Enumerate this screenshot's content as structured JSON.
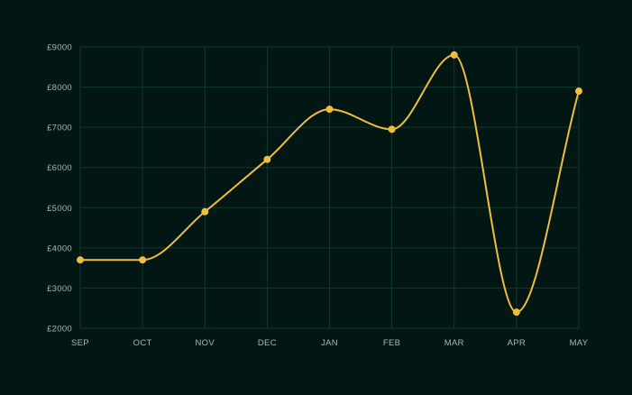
{
  "colors": {
    "background": "#021614",
    "grid": "#0f3a2e",
    "axis_text": "#a9b8b2",
    "line": "#f0be3c",
    "point": "#f0be3c"
  },
  "chart_data": {
    "type": "line",
    "title": "",
    "xlabel": "",
    "ylabel": "",
    "categories": [
      "SEP",
      "OCT",
      "NOV",
      "DEC",
      "JAN",
      "FEB",
      "MAR",
      "APR",
      "MAY"
    ],
    "series": [
      {
        "values": [
          3700,
          3700,
          4900,
          6200,
          7450,
          6950,
          8800,
          2400,
          7900
        ]
      }
    ],
    "ylim": [
      2000,
      9000
    ],
    "yticks": [
      2000,
      3000,
      4000,
      5000,
      6000,
      7000,
      8000,
      9000
    ],
    "ytick_labels": [
      "£2000",
      "£3000",
      "£4000",
      "£5000",
      "£6000",
      "£7000",
      "£8000",
      "£9000"
    ],
    "grid": true,
    "smooth": true,
    "legend": "none"
  }
}
